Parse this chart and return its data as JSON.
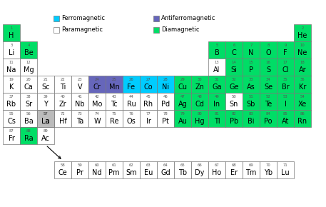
{
  "colors": {
    "ferromagnetic": "#00CCFF",
    "antiferromagnetic": "#6666BB",
    "paramagnetic": "#FFFFFF",
    "diamagnetic": "#00DD66",
    "border": "#888888",
    "background": "#FFFFFF",
    "gray_spacer": "#AAAAAA"
  },
  "elements": [
    {
      "symbol": "H",
      "number": 1,
      "col": 0,
      "row": 0,
      "type": "diamagnetic"
    },
    {
      "symbol": "He",
      "number": 2,
      "col": 17,
      "row": 0,
      "type": "diamagnetic"
    },
    {
      "symbol": "Li",
      "number": 3,
      "col": 0,
      "row": 1,
      "type": "paramagnetic"
    },
    {
      "symbol": "Be",
      "number": 4,
      "col": 1,
      "row": 1,
      "type": "diamagnetic"
    },
    {
      "symbol": "B",
      "number": 5,
      "col": 12,
      "row": 1,
      "type": "diamagnetic"
    },
    {
      "symbol": "C",
      "number": 6,
      "col": 13,
      "row": 1,
      "type": "diamagnetic"
    },
    {
      "symbol": "N",
      "number": 7,
      "col": 14,
      "row": 1,
      "type": "diamagnetic"
    },
    {
      "symbol": "O",
      "number": 8,
      "col": 15,
      "row": 1,
      "type": "diamagnetic"
    },
    {
      "symbol": "F",
      "number": 9,
      "col": 16,
      "row": 1,
      "type": "diamagnetic"
    },
    {
      "symbol": "Ne",
      "number": 10,
      "col": 17,
      "row": 1,
      "type": "diamagnetic"
    },
    {
      "symbol": "Na",
      "number": 11,
      "col": 0,
      "row": 2,
      "type": "paramagnetic"
    },
    {
      "symbol": "Mg",
      "number": 12,
      "col": 1,
      "row": 2,
      "type": "paramagnetic"
    },
    {
      "symbol": "Al",
      "number": 13,
      "col": 12,
      "row": 2,
      "type": "paramagnetic"
    },
    {
      "symbol": "Si",
      "number": 14,
      "col": 13,
      "row": 2,
      "type": "diamagnetic"
    },
    {
      "symbol": "P",
      "number": 15,
      "col": 14,
      "row": 2,
      "type": "diamagnetic"
    },
    {
      "symbol": "S",
      "number": 16,
      "col": 15,
      "row": 2,
      "type": "diamagnetic"
    },
    {
      "symbol": "Cl",
      "number": 17,
      "col": 16,
      "row": 2,
      "type": "diamagnetic"
    },
    {
      "symbol": "Ar",
      "number": 18,
      "col": 17,
      "row": 2,
      "type": "diamagnetic"
    },
    {
      "symbol": "K",
      "number": 19,
      "col": 0,
      "row": 3,
      "type": "paramagnetic"
    },
    {
      "symbol": "Ca",
      "number": 20,
      "col": 1,
      "row": 3,
      "type": "paramagnetic"
    },
    {
      "symbol": "Sc",
      "number": 21,
      "col": 2,
      "row": 3,
      "type": "paramagnetic"
    },
    {
      "symbol": "Ti",
      "number": 22,
      "col": 3,
      "row": 3,
      "type": "paramagnetic"
    },
    {
      "symbol": "V",
      "number": 23,
      "col": 4,
      "row": 3,
      "type": "paramagnetic"
    },
    {
      "symbol": "Cr",
      "number": 24,
      "col": 5,
      "row": 3,
      "type": "antiferromagnetic"
    },
    {
      "symbol": "Mn",
      "number": 25,
      "col": 6,
      "row": 3,
      "type": "antiferromagnetic"
    },
    {
      "symbol": "Fe",
      "number": 26,
      "col": 7,
      "row": 3,
      "type": "ferromagnetic"
    },
    {
      "symbol": "Co",
      "number": 27,
      "col": 8,
      "row": 3,
      "type": "ferromagnetic"
    },
    {
      "symbol": "Ni",
      "number": 28,
      "col": 9,
      "row": 3,
      "type": "ferromagnetic"
    },
    {
      "symbol": "Cu",
      "number": 29,
      "col": 10,
      "row": 3,
      "type": "diamagnetic"
    },
    {
      "symbol": "Zn",
      "number": 30,
      "col": 11,
      "row": 3,
      "type": "diamagnetic"
    },
    {
      "symbol": "Ga",
      "number": 31,
      "col": 12,
      "row": 3,
      "type": "diamagnetic"
    },
    {
      "symbol": "Ge",
      "number": 32,
      "col": 13,
      "row": 3,
      "type": "diamagnetic"
    },
    {
      "symbol": "As",
      "number": 33,
      "col": 14,
      "row": 3,
      "type": "diamagnetic"
    },
    {
      "symbol": "Se",
      "number": 34,
      "col": 15,
      "row": 3,
      "type": "diamagnetic"
    },
    {
      "symbol": "Br",
      "number": 35,
      "col": 16,
      "row": 3,
      "type": "diamagnetic"
    },
    {
      "symbol": "Kr",
      "number": 36,
      "col": 17,
      "row": 3,
      "type": "diamagnetic"
    },
    {
      "symbol": "Rb",
      "number": 37,
      "col": 0,
      "row": 4,
      "type": "paramagnetic"
    },
    {
      "symbol": "Sr",
      "number": 38,
      "col": 1,
      "row": 4,
      "type": "paramagnetic"
    },
    {
      "symbol": "Y",
      "number": 39,
      "col": 2,
      "row": 4,
      "type": "paramagnetic"
    },
    {
      "symbol": "Zr",
      "number": 40,
      "col": 3,
      "row": 4,
      "type": "paramagnetic"
    },
    {
      "symbol": "Nb",
      "number": 41,
      "col": 4,
      "row": 4,
      "type": "paramagnetic"
    },
    {
      "symbol": "Mo",
      "number": 42,
      "col": 5,
      "row": 4,
      "type": "paramagnetic"
    },
    {
      "symbol": "Tc",
      "number": 43,
      "col": 6,
      "row": 4,
      "type": "paramagnetic"
    },
    {
      "symbol": "Ru",
      "number": 44,
      "col": 7,
      "row": 4,
      "type": "paramagnetic"
    },
    {
      "symbol": "Rh",
      "number": 45,
      "col": 8,
      "row": 4,
      "type": "paramagnetic"
    },
    {
      "symbol": "Pd",
      "number": 46,
      "col": 9,
      "row": 4,
      "type": "paramagnetic"
    },
    {
      "symbol": "Ag",
      "number": 47,
      "col": 10,
      "row": 4,
      "type": "diamagnetic"
    },
    {
      "symbol": "Cd",
      "number": 48,
      "col": 11,
      "row": 4,
      "type": "diamagnetic"
    },
    {
      "symbol": "In",
      "number": 49,
      "col": 12,
      "row": 4,
      "type": "diamagnetic"
    },
    {
      "symbol": "Sn",
      "number": 50,
      "col": 13,
      "row": 4,
      "type": "paramagnetic"
    },
    {
      "symbol": "Sb",
      "number": 51,
      "col": 14,
      "row": 4,
      "type": "diamagnetic"
    },
    {
      "symbol": "Te",
      "number": 52,
      "col": 15,
      "row": 4,
      "type": "diamagnetic"
    },
    {
      "symbol": "I",
      "number": 53,
      "col": 16,
      "row": 4,
      "type": "diamagnetic"
    },
    {
      "symbol": "Xe",
      "number": 54,
      "col": 17,
      "row": 4,
      "type": "diamagnetic"
    },
    {
      "symbol": "Cs",
      "number": 55,
      "col": 0,
      "row": 5,
      "type": "paramagnetic"
    },
    {
      "symbol": "Ba",
      "number": 56,
      "col": 1,
      "row": 5,
      "type": "paramagnetic"
    },
    {
      "symbol": "La",
      "number": 57,
      "col": 2,
      "row": 5,
      "type": "paramagnetic"
    },
    {
      "symbol": "Hf",
      "number": 72,
      "col": 3,
      "row": 5,
      "type": "paramagnetic"
    },
    {
      "symbol": "Ta",
      "number": 73,
      "col": 4,
      "row": 5,
      "type": "paramagnetic"
    },
    {
      "symbol": "W",
      "number": 74,
      "col": 5,
      "row": 5,
      "type": "paramagnetic"
    },
    {
      "symbol": "Re",
      "number": 75,
      "col": 6,
      "row": 5,
      "type": "paramagnetic"
    },
    {
      "symbol": "Os",
      "number": 76,
      "col": 7,
      "row": 5,
      "type": "paramagnetic"
    },
    {
      "symbol": "Ir",
      "number": 77,
      "col": 8,
      "row": 5,
      "type": "paramagnetic"
    },
    {
      "symbol": "Pt",
      "number": 78,
      "col": 9,
      "row": 5,
      "type": "paramagnetic"
    },
    {
      "symbol": "Au",
      "number": 79,
      "col": 10,
      "row": 5,
      "type": "diamagnetic"
    },
    {
      "symbol": "Hg",
      "number": 80,
      "col": 11,
      "row": 5,
      "type": "diamagnetic"
    },
    {
      "symbol": "Tl",
      "number": 81,
      "col": 12,
      "row": 5,
      "type": "diamagnetic"
    },
    {
      "symbol": "Pb",
      "number": 82,
      "col": 13,
      "row": 5,
      "type": "diamagnetic"
    },
    {
      "symbol": "Bi",
      "number": 83,
      "col": 14,
      "row": 5,
      "type": "diamagnetic"
    },
    {
      "symbol": "Po",
      "number": 84,
      "col": 15,
      "row": 5,
      "type": "diamagnetic"
    },
    {
      "symbol": "At",
      "number": 85,
      "col": 16,
      "row": 5,
      "type": "diamagnetic"
    },
    {
      "symbol": "Rn",
      "number": 86,
      "col": 17,
      "row": 5,
      "type": "diamagnetic"
    },
    {
      "symbol": "Fr",
      "number": 87,
      "col": 0,
      "row": 6,
      "type": "paramagnetic"
    },
    {
      "symbol": "Ra",
      "number": 88,
      "col": 1,
      "row": 6,
      "type": "diamagnetic"
    },
    {
      "symbol": "Ac",
      "number": 89,
      "col": 2,
      "row": 6,
      "type": "paramagnetic"
    },
    {
      "symbol": "Ce",
      "number": 58,
      "col": 3,
      "row": 8,
      "type": "paramagnetic"
    },
    {
      "symbol": "Pr",
      "number": 59,
      "col": 4,
      "row": 8,
      "type": "paramagnetic"
    },
    {
      "symbol": "Nd",
      "number": 60,
      "col": 5,
      "row": 8,
      "type": "paramagnetic"
    },
    {
      "symbol": "Pm",
      "number": 61,
      "col": 6,
      "row": 8,
      "type": "paramagnetic"
    },
    {
      "symbol": "Sm",
      "number": 62,
      "col": 7,
      "row": 8,
      "type": "paramagnetic"
    },
    {
      "symbol": "Eu",
      "number": 63,
      "col": 8,
      "row": 8,
      "type": "paramagnetic"
    },
    {
      "symbol": "Gd",
      "number": 64,
      "col": 9,
      "row": 8,
      "type": "paramagnetic"
    },
    {
      "symbol": "Tb",
      "number": 65,
      "col": 10,
      "row": 8,
      "type": "paramagnetic"
    },
    {
      "symbol": "Dy",
      "number": 66,
      "col": 11,
      "row": 8,
      "type": "paramagnetic"
    },
    {
      "symbol": "Ho",
      "number": 67,
      "col": 12,
      "row": 8,
      "type": "paramagnetic"
    },
    {
      "symbol": "Er",
      "number": 68,
      "col": 13,
      "row": 8,
      "type": "paramagnetic"
    },
    {
      "symbol": "Tm",
      "number": 69,
      "col": 14,
      "row": 8,
      "type": "paramagnetic"
    },
    {
      "symbol": "Yb",
      "number": 70,
      "col": 15,
      "row": 8,
      "type": "paramagnetic"
    },
    {
      "symbol": "Lu",
      "number": 71,
      "col": 16,
      "row": 8,
      "type": "paramagnetic"
    }
  ],
  "legend": [
    {
      "label": "Ferromagnetic",
      "type": "ferromagnetic",
      "row": 0,
      "col": 0
    },
    {
      "label": "Antiferromagnetic",
      "type": "antiferromagnetic",
      "row": 0,
      "col": 1
    },
    {
      "label": "Paramagnetic",
      "type": "paramagnetic",
      "row": 1,
      "col": 0
    },
    {
      "label": "Diamagnetic",
      "type": "diamagnetic",
      "row": 1,
      "col": 1
    }
  ]
}
